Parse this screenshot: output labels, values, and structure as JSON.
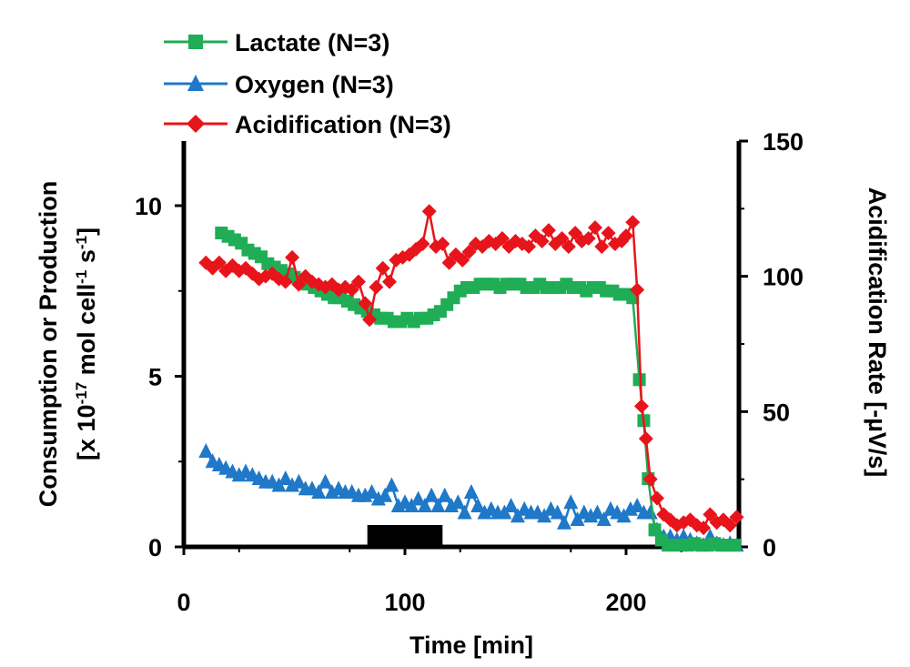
{
  "chart_data": {
    "type": "line",
    "title": "",
    "xlabel": "Time [min]",
    "ylabel_left_line1": "Consumption or Production",
    "ylabel_left_line2": {
      "part1": "[x 10",
      "exp1": "-17",
      "part2": " mol cell",
      "exp2": "-1",
      "part3": " s",
      "exp3": "-1",
      "part4": "]"
    },
    "ylabel_right": "Acidification Rate [-µV/s]",
    "xlim": [
      0,
      250
    ],
    "ylim_left": [
      0,
      12
    ],
    "ylim_right": [
      0,
      150
    ],
    "xticks": [
      0,
      100,
      200
    ],
    "yticks_left": [
      0,
      5,
      10
    ],
    "yticks_right": [
      0,
      50,
      100,
      150
    ],
    "xtick_labels": [
      "0",
      "100",
      "200"
    ],
    "ytick_left_labels": [
      "0",
      "5",
      "10"
    ],
    "ytick_right_labels": [
      "0",
      "50",
      "100",
      "150"
    ],
    "annotation_bar": {
      "x_start": 83,
      "x_end": 117,
      "label": ""
    },
    "legend_position": "top-left",
    "series": [
      {
        "name": "Lactate (N=3)",
        "color": "#1fad55",
        "marker": "square",
        "axis": "left",
        "x": [
          17,
          20,
          23,
          26,
          29,
          32,
          35,
          38,
          41,
          44,
          47,
          50,
          53,
          56,
          59,
          62,
          65,
          68,
          71,
          74,
          77,
          80,
          83,
          86,
          89,
          92,
          95,
          98,
          101,
          104,
          107,
          110,
          113,
          116,
          119,
          122,
          125,
          128,
          131,
          134,
          137,
          140,
          143,
          146,
          149,
          152,
          155,
          158,
          161,
          164,
          167,
          170,
          173,
          176,
          179,
          182,
          185,
          188,
          191,
          194,
          197,
          200,
          203,
          206,
          208,
          210,
          213,
          216,
          219,
          222,
          225,
          228,
          231,
          234,
          237,
          240,
          243,
          246,
          249
        ],
        "values": [
          9.2,
          9.1,
          9.0,
          8.9,
          8.7,
          8.6,
          8.5,
          8.3,
          8.2,
          8.1,
          8.0,
          7.9,
          7.8,
          7.7,
          7.6,
          7.5,
          7.4,
          7.3,
          7.3,
          7.2,
          7.1,
          7.0,
          6.9,
          6.8,
          6.7,
          6.7,
          6.6,
          6.6,
          6.7,
          6.6,
          6.7,
          6.7,
          6.8,
          6.9,
          7.1,
          7.3,
          7.5,
          7.6,
          7.6,
          7.7,
          7.7,
          7.7,
          7.6,
          7.7,
          7.7,
          7.7,
          7.6,
          7.6,
          7.7,
          7.6,
          7.6,
          7.6,
          7.7,
          7.6,
          7.6,
          7.5,
          7.6,
          7.6,
          7.5,
          7.5,
          7.4,
          7.4,
          7.3,
          4.9,
          3.7,
          2.0,
          0.5,
          0.2,
          0.05,
          0.05,
          0.05,
          0.05,
          0.1,
          0.05,
          0.05,
          0.1,
          0.05,
          0.05,
          0.05
        ]
      },
      {
        "name": "Oxygen (N=3)",
        "color": "#1f78c8",
        "marker": "triangle",
        "axis": "left",
        "x": [
          10,
          13,
          16,
          19,
          22,
          25,
          28,
          31,
          34,
          37,
          40,
          43,
          46,
          49,
          52,
          55,
          58,
          61,
          64,
          67,
          70,
          73,
          76,
          79,
          82,
          85,
          88,
          91,
          94,
          97,
          100,
          103,
          106,
          109,
          112,
          115,
          118,
          121,
          124,
          127,
          130,
          133,
          136,
          139,
          142,
          145,
          148,
          151,
          154,
          157,
          160,
          163,
          166,
          169,
          172,
          175,
          178,
          181,
          184,
          187,
          190,
          193,
          196,
          199,
          202,
          205,
          208,
          211,
          214,
          217,
          220,
          223,
          226,
          229,
          232,
          235,
          238,
          241,
          244,
          247,
          250
        ],
        "values": [
          2.8,
          2.5,
          2.4,
          2.3,
          2.2,
          2.1,
          2.2,
          2.1,
          2.0,
          1.9,
          1.9,
          1.8,
          2.0,
          1.8,
          1.9,
          1.7,
          1.7,
          1.6,
          1.9,
          1.6,
          1.7,
          1.6,
          1.6,
          1.5,
          1.5,
          1.6,
          1.4,
          1.5,
          1.8,
          1.2,
          1.3,
          1.2,
          1.4,
          1.2,
          1.5,
          1.2,
          1.5,
          1.2,
          1.3,
          1.0,
          1.6,
          1.2,
          1.0,
          1.1,
          1.0,
          1.0,
          1.2,
          0.9,
          1.1,
          1.0,
          1.0,
          0.9,
          1.1,
          1.0,
          0.7,
          1.3,
          0.8,
          1.0,
          0.9,
          1.0,
          0.8,
          1.1,
          1.0,
          0.9,
          1.1,
          1.2,
          1.0,
          1.0,
          0.5,
          0.3,
          0.3,
          0.2,
          0.3,
          0.2,
          0.1,
          0.05,
          0.3,
          0.1,
          0.05,
          0.1,
          0.05
        ]
      },
      {
        "name": "Acidification (N=3)",
        "color": "#e8141b",
        "marker": "diamond",
        "axis": "right",
        "x": [
          10,
          13,
          16,
          19,
          22,
          25,
          28,
          31,
          34,
          37,
          40,
          43,
          46,
          49,
          52,
          55,
          58,
          61,
          64,
          67,
          70,
          73,
          76,
          79,
          82,
          84,
          87,
          90,
          93,
          96,
          99,
          102,
          105,
          108,
          111,
          114,
          117,
          120,
          123,
          126,
          129,
          132,
          135,
          138,
          141,
          144,
          147,
          150,
          153,
          156,
          159,
          162,
          165,
          168,
          171,
          174,
          177,
          180,
          183,
          186,
          189,
          192,
          195,
          198,
          200,
          203,
          205,
          207,
          209,
          211,
          214,
          217,
          220,
          223,
          226,
          229,
          232,
          235,
          238,
          241,
          244,
          247,
          250
        ],
        "values": [
          105,
          103,
          105,
          102,
          104,
          102,
          103,
          101,
          99,
          100,
          101,
          99,
          98,
          107,
          97,
          100,
          98,
          97,
          96,
          97,
          95,
          96,
          95,
          98,
          90,
          84,
          96,
          103,
          98,
          106,
          107,
          108,
          110,
          112,
          124,
          111,
          112,
          105,
          108,
          106,
          109,
          112,
          111,
          113,
          112,
          114,
          111,
          113,
          112,
          111,
          115,
          113,
          117,
          112,
          114,
          111,
          116,
          113,
          114,
          118,
          111,
          116,
          112,
          113,
          115,
          120,
          95,
          52,
          40,
          25,
          18,
          12,
          10,
          8,
          9,
          10,
          8,
          7,
          12,
          9,
          10,
          8,
          11
        ]
      }
    ]
  }
}
